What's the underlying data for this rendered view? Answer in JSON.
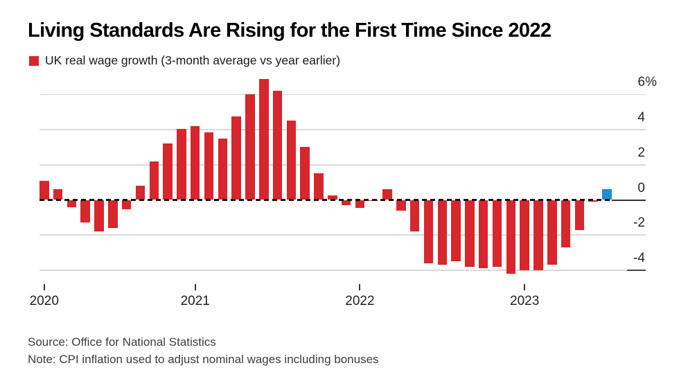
{
  "title": "Living Standards Are Rising for the First Time Since 2022",
  "legend": {
    "label": "UK real wage growth (3-month average vs year earlier)",
    "swatch_color": "#d7262c"
  },
  "source": "Source: Office for National Statistics",
  "note": "Note: CPI inflation used to adjust nominal wages including bonuses",
  "colors": {
    "bar_red": "#d7262c",
    "bar_blue": "#1e8dd2",
    "gridline_light": "#d9d9d9",
    "zero_line": "#141414",
    "axis_dark": "#444444",
    "tick": "#333333"
  },
  "chart_data": {
    "type": "bar",
    "title": "Living Standards Are Rising for the First Time Since 2022",
    "series_name": "UK real wage growth (3-month average vs year earlier)",
    "unit": "%",
    "values": [
      1.1,
      0.6,
      -0.4,
      -1.3,
      -1.8,
      -1.6,
      -0.55,
      0.8,
      2.2,
      3.2,
      4.05,
      4.2,
      3.85,
      3.5,
      4.75,
      6.0,
      6.9,
      6.2,
      4.5,
      3.0,
      1.5,
      0.25,
      -0.3,
      -0.45,
      -0.05,
      0.6,
      -0.6,
      -1.8,
      -3.6,
      -3.7,
      -3.5,
      -3.8,
      -3.9,
      -3.8,
      -4.2,
      -4.0,
      -4.0,
      -3.7,
      -2.7,
      -1.7,
      -0.1,
      0.6
    ],
    "highlight": {
      "index": 41,
      "color": "#1e8dd2"
    },
    "y_ticks": [
      {
        "value": 6,
        "label": "6%"
      },
      {
        "value": 4,
        "label": "4"
      },
      {
        "value": 2,
        "label": "2"
      },
      {
        "value": 0,
        "label": "0"
      },
      {
        "value": -2,
        "label": "-2"
      },
      {
        "value": -4,
        "label": "-4"
      }
    ],
    "x_year_ticks": [
      {
        "label": "2020",
        "bar_index": 0
      },
      {
        "label": "2021",
        "bar_index": 11
      },
      {
        "label": "2022",
        "bar_index": 23
      },
      {
        "label": "2023",
        "bar_index": 35
      }
    ],
    "ylim": [
      -4.7,
      7.0
    ],
    "baseline": "dashed black line at zero drawn over bars",
    "grid": "horizontal light gray lines, labels on right side"
  }
}
